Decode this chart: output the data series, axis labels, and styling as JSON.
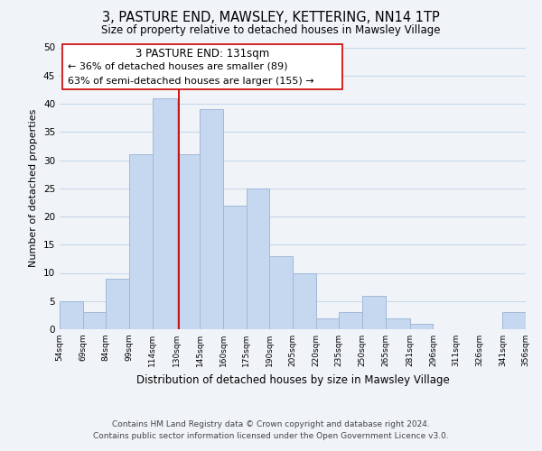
{
  "title": "3, PASTURE END, MAWSLEY, KETTERING, NN14 1TP",
  "subtitle": "Size of property relative to detached houses in Mawsley Village",
  "xlabel": "Distribution of detached houses by size in Mawsley Village",
  "ylabel": "Number of detached properties",
  "bins": [
    54,
    69,
    84,
    99,
    114,
    130,
    145,
    160,
    175,
    190,
    205,
    220,
    235,
    250,
    265,
    281,
    296,
    311,
    326,
    341,
    356
  ],
  "counts": [
    5,
    3,
    9,
    31,
    41,
    31,
    39,
    22,
    25,
    13,
    10,
    2,
    3,
    6,
    2,
    1,
    0,
    0,
    0,
    3
  ],
  "bar_color": "#c5d8f0",
  "bar_edge_color": "#a0b8d8",
  "vline_x": 131,
  "vline_color": "#cc0000",
  "ylim": [
    0,
    50
  ],
  "yticks": [
    0,
    5,
    10,
    15,
    20,
    25,
    30,
    35,
    40,
    45,
    50
  ],
  "annotation_box_title": "3 PASTURE END: 131sqm",
  "annotation_line1": "← 36% of detached houses are smaller (89)",
  "annotation_line2": "63% of semi-detached houses are larger (155) →",
  "annotation_box_color": "#ffffff",
  "annotation_box_edge_color": "#cc0000",
  "footer1": "Contains HM Land Registry data © Crown copyright and database right 2024.",
  "footer2": "Contains public sector information licensed under the Open Government Licence v3.0.",
  "tick_labels": [
    "54sqm",
    "69sqm",
    "84sqm",
    "99sqm",
    "114sqm",
    "130sqm",
    "145sqm",
    "160sqm",
    "175sqm",
    "190sqm",
    "205sqm",
    "220sqm",
    "235sqm",
    "250sqm",
    "265sqm",
    "281sqm",
    "296sqm",
    "311sqm",
    "326sqm",
    "341sqm",
    "356sqm"
  ],
  "background_color": "#f0f4f8",
  "grid_color": "#c8d8ea",
  "title_fontsize": 10.5,
  "subtitle_fontsize": 8.5,
  "xlabel_fontsize": 8.5,
  "ylabel_fontsize": 8,
  "tick_fontsize": 6.5,
  "ytick_fontsize": 7.5,
  "footer_fontsize": 6.5,
  "annot_title_fontsize": 8.5,
  "annot_text_fontsize": 8
}
